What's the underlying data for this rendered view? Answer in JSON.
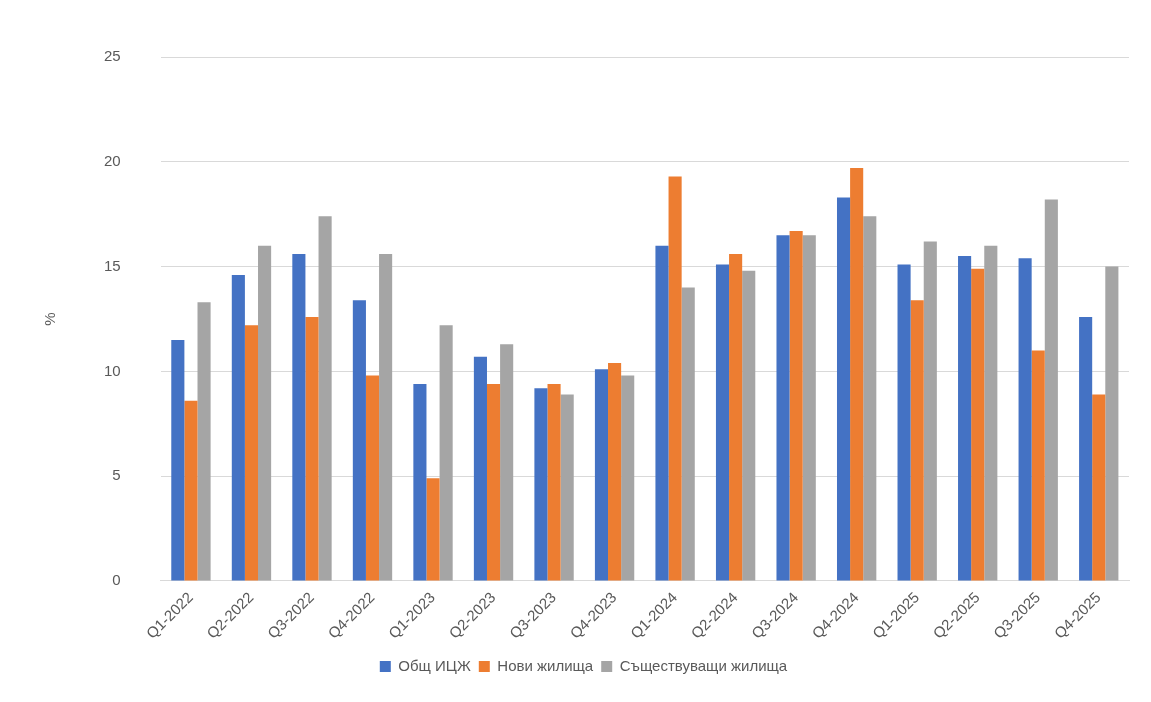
{
  "chart_data": {
    "type": "bar",
    "ylabel": "%",
    "categories": [
      "Q1-2022",
      "Q2-2022",
      "Q3-2022",
      "Q4-2022",
      "Q1-2023",
      "Q2-2023",
      "Q3-2023",
      "Q4-2023",
      "Q1-2024",
      "Q2-2024",
      "Q3-2024",
      "Q4-2024",
      "Q1-2025",
      "Q2-2025",
      "Q3-2025",
      "Q4-2025"
    ],
    "series": [
      {
        "name": "Общ ИЦЖ",
        "color": "#4472c4",
        "values": [
          11.5,
          14.6,
          15.6,
          13.4,
          9.4,
          10.7,
          9.2,
          10.1,
          16.0,
          15.1,
          16.5,
          18.3,
          15.1,
          15.5,
          15.4,
          12.6
        ]
      },
      {
        "name": "Нови жилища",
        "color": "#ed7d31",
        "values": [
          8.6,
          12.2,
          12.6,
          9.8,
          4.9,
          9.4,
          9.4,
          10.4,
          19.3,
          15.6,
          16.7,
          19.7,
          13.4,
          14.9,
          11.0,
          8.9
        ]
      },
      {
        "name": "Съществуващи жилища",
        "color": "#a5a5a5",
        "values": [
          13.3,
          16.0,
          17.4,
          15.6,
          12.2,
          11.3,
          8.9,
          9.8,
          14.0,
          14.8,
          16.5,
          17.4,
          16.2,
          16.0,
          18.2,
          15.0
        ]
      }
    ],
    "ylim": [
      0,
      25
    ],
    "yticks": [
      0,
      5,
      10,
      15,
      20,
      25
    ],
    "grid": "y",
    "legend": "bottom"
  }
}
